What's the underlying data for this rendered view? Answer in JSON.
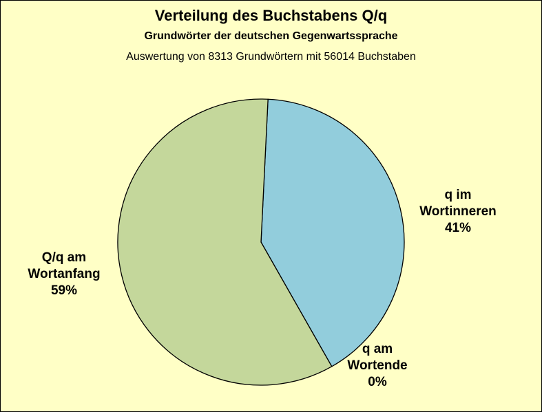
{
  "chart_data": {
    "type": "pie",
    "title": "Verteilung des Buchstabens Q/q",
    "subtitle": "Grundwörter der deutschen Gegenwartssprache",
    "note": "Auswertung von 8313 Grundwörtern mit 56014 Buchstaben",
    "slices": [
      {
        "name": "Q/q am Wortanfang",
        "label_lines": [
          "Q/q am",
          "Wortanfang"
        ],
        "percent_label": "59%",
        "value": 59,
        "color": "#C4D79B"
      },
      {
        "name": "q im Wortinneren",
        "label_lines": [
          "q im",
          "Wortinneren"
        ],
        "percent_label": "41%",
        "value": 41,
        "color": "#92CDDC"
      },
      {
        "name": "q am Wortende",
        "label_lines": [
          "q am",
          "Wortende"
        ],
        "percent_label": "0%",
        "value": 0,
        "color": "#FFFFFF"
      }
    ]
  },
  "colors": {
    "background": "#FFFFC6",
    "outline": "#000000"
  }
}
